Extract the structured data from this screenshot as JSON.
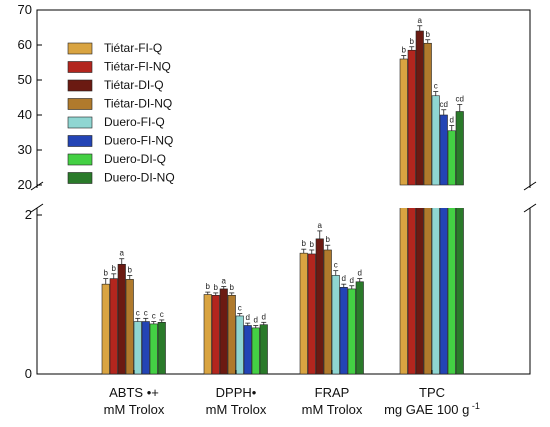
{
  "chart_data": {
    "type": "bar",
    "categories": [
      {
        "line1": "ABTS •+",
        "line2": "mM Trolox"
      },
      {
        "line1": "DPPH•",
        "line2": "mM Trolox"
      },
      {
        "line1": "FRAP",
        "line2": "mM Trolox"
      },
      {
        "line1": "TPC",
        "line2": "mg GAE 100 g",
        "superscript": "-1"
      }
    ],
    "y_ticks_lower": [
      "0",
      "2"
    ],
    "y_ticks_upper": [
      "20",
      "30",
      "40",
      "50",
      "60",
      "70"
    ],
    "ylim_lower": [
      0,
      2
    ],
    "ylim_upper": [
      20,
      70
    ],
    "axis_break": true,
    "legend_placement": "top-left",
    "series": [
      {
        "name": "Tiétar-FI-Q",
        "color": "#d9a441",
        "values": [
          1.13,
          1.0,
          1.52,
          56.0
        ],
        "errors": [
          0.07,
          0.03,
          0.05,
          1.0
        ],
        "sig": [
          "b",
          "b",
          "b",
          "b"
        ]
      },
      {
        "name": "Tiétar-FI-NQ",
        "color": "#b3261e",
        "values": [
          1.2,
          0.99,
          1.51,
          58.5
        ],
        "errors": [
          0.06,
          0.03,
          0.05,
          1.0
        ],
        "sig": [
          "b",
          "b",
          "b",
          "b"
        ]
      },
      {
        "name": "Tiétar-DI-Q",
        "color": "#6b1a12",
        "values": [
          1.38,
          1.07,
          1.7,
          64.0
        ],
        "errors": [
          0.07,
          0.03,
          0.1,
          1.5
        ],
        "sig": [
          "a",
          "a",
          "a",
          "a"
        ]
      },
      {
        "name": "Tiétar-DI-NQ",
        "color": "#b07a2c",
        "values": [
          1.19,
          0.99,
          1.56,
          60.5
        ],
        "errors": [
          0.05,
          0.03,
          0.06,
          1.0
        ],
        "sig": [
          "b",
          "b",
          "b",
          "b"
        ]
      },
      {
        "name": "Duero-FI-Q",
        "color": "#8fd6d2",
        "values": [
          0.66,
          0.73,
          1.24,
          45.5
        ],
        "errors": [
          0.04,
          0.03,
          0.06,
          1.2
        ],
        "sig": [
          "c",
          "c",
          "c",
          "c"
        ]
      },
      {
        "name": "Duero-FI-NQ",
        "color": "#2344b5",
        "values": [
          0.66,
          0.61,
          1.09,
          40.0
        ],
        "errors": [
          0.04,
          0.03,
          0.04,
          1.5
        ],
        "sig": [
          "c",
          "d",
          "d",
          "cd"
        ]
      },
      {
        "name": "Duero-DI-Q",
        "color": "#44d044",
        "values": [
          0.63,
          0.58,
          1.07,
          35.5
        ],
        "errors": [
          0.03,
          0.03,
          0.04,
          1.5
        ],
        "sig": [
          "c",
          "d",
          "d",
          "d"
        ]
      },
      {
        "name": "Duero-DI-NQ",
        "color": "#2a7a2a",
        "values": [
          0.65,
          0.62,
          1.16,
          41.0
        ],
        "errors": [
          0.03,
          0.03,
          0.04,
          2.0
        ],
        "sig": [
          "c",
          "d",
          "d",
          "cd"
        ]
      }
    ]
  }
}
